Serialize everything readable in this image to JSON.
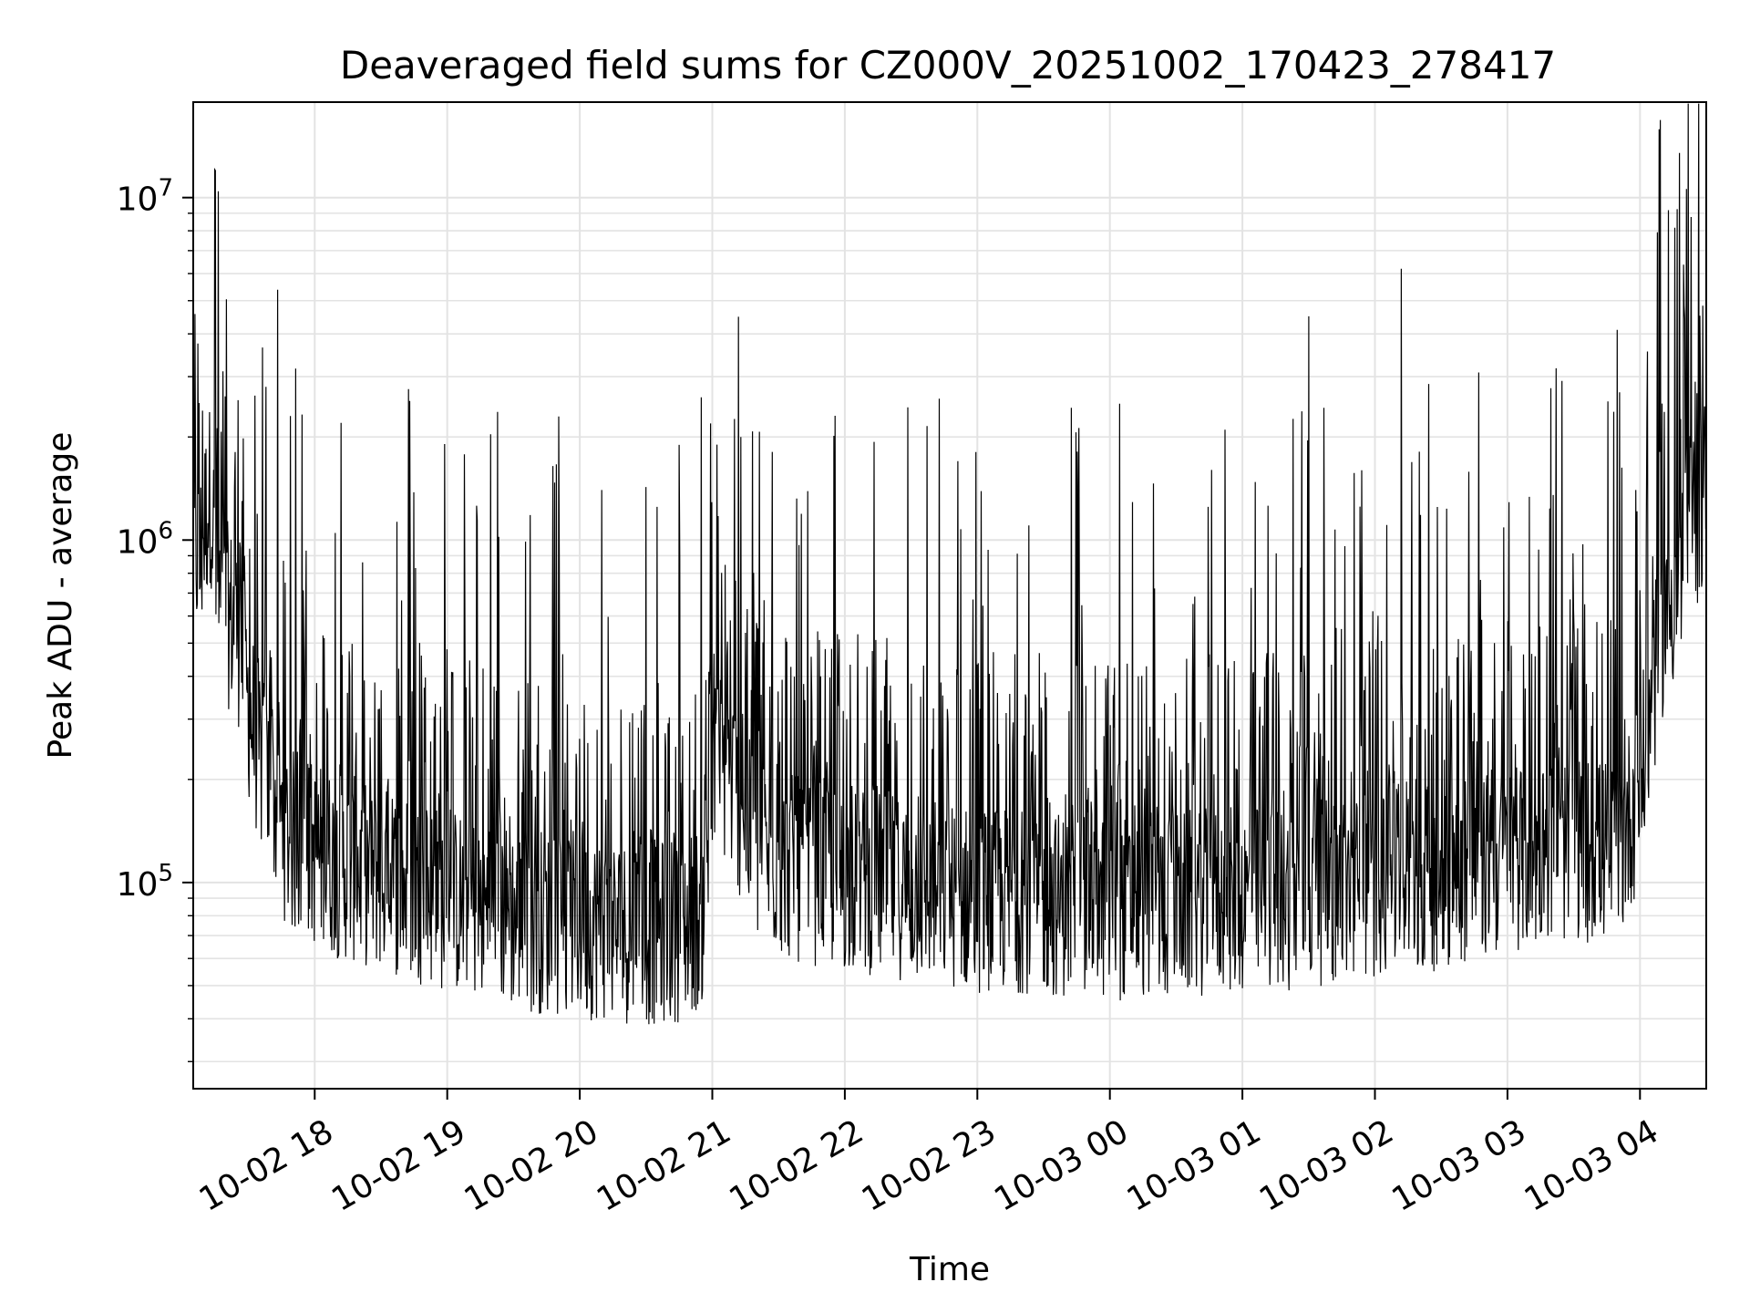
{
  "chart_data": {
    "type": "line",
    "title": "Deaveraged field sums for CZ000V_20251002_170423_278417",
    "xlabel": "Time",
    "ylabel": "Peak ADU - average",
    "yscale": "log",
    "xlim": [
      "2025-10-02T17:05",
      "2025-10-03T04:30"
    ],
    "ylim": [
      25000,
      19000000
    ],
    "grid": true,
    "line_color": "#000000",
    "x_ticks": [
      {
        "value": "2025-10-02T18:00",
        "label": "10-02 18"
      },
      {
        "value": "2025-10-02T19:00",
        "label": "10-02 19"
      },
      {
        "value": "2025-10-02T20:00",
        "label": "10-02 20"
      },
      {
        "value": "2025-10-02T21:00",
        "label": "10-02 21"
      },
      {
        "value": "2025-10-02T22:00",
        "label": "10-02 22"
      },
      {
        "value": "2025-10-02T23:00",
        "label": "10-02 23"
      },
      {
        "value": "2025-10-03T00:00",
        "label": "10-03 00"
      },
      {
        "value": "2025-10-03T01:00",
        "label": "10-03 01"
      },
      {
        "value": "2025-10-03T02:00",
        "label": "10-03 02"
      },
      {
        "value": "2025-10-03T03:00",
        "label": "10-03 03"
      },
      {
        "value": "2025-10-03T04:00",
        "label": "10-03 04"
      }
    ],
    "y_ticks": [
      {
        "value": 100000,
        "base": "10",
        "exp": "5"
      },
      {
        "value": 1000000,
        "base": "10",
        "exp": "6"
      },
      {
        "value": 10000000,
        "base": "10",
        "exp": "7"
      }
    ],
    "series": [
      {
        "x": [
          "2025-10-02T17:05",
          "2025-10-02T17:08",
          "2025-10-02T17:11",
          "2025-10-02T17:13",
          "2025-10-02T17:16",
          "2025-10-02T17:20",
          "2025-10-02T17:25",
          "2025-10-02T17:30",
          "2025-10-02T17:35",
          "2025-10-02T17:40",
          "2025-10-02T17:45",
          "2025-10-02T17:50",
          "2025-10-02T18:00",
          "2025-10-02T18:10",
          "2025-10-02T18:20",
          "2025-10-02T18:30",
          "2025-10-02T18:40",
          "2025-10-02T18:50",
          "2025-10-02T19:00",
          "2025-10-02T19:15",
          "2025-10-02T19:30",
          "2025-10-02T19:45",
          "2025-10-02T20:00",
          "2025-10-02T20:15",
          "2025-10-02T20:30",
          "2025-10-02T20:45",
          "2025-10-02T20:55",
          "2025-10-02T21:02",
          "2025-10-02T21:10",
          "2025-10-02T21:20",
          "2025-10-02T21:40",
          "2025-10-02T22:00",
          "2025-10-02T22:20",
          "2025-10-02T22:40",
          "2025-10-02T23:00",
          "2025-10-02T23:20",
          "2025-10-02T23:40",
          "2025-10-03T00:00",
          "2025-10-03T00:30",
          "2025-10-03T01:00",
          "2025-10-03T01:30",
          "2025-10-03T02:00",
          "2025-10-03T02:30",
          "2025-10-03T03:00",
          "2025-10-03T03:30",
          "2025-10-03T03:50",
          "2025-10-03T04:00",
          "2025-10-03T04:10",
          "2025-10-03T04:20",
          "2025-10-03T04:30"
        ],
        "y": [
          1100000,
          900000,
          1300000,
          1500000,
          700000,
          650000,
          600000,
          350000,
          250000,
          200000,
          160000,
          140000,
          130000,
          120000,
          115000,
          110000,
          105000,
          100000,
          95000,
          90000,
          85000,
          82000,
          80000,
          78000,
          76000,
          78000,
          85000,
          250000,
          200000,
          130000,
          115000,
          110000,
          105000,
          100000,
          95000,
          95000,
          92000,
          90000,
          92000,
          95000,
          98000,
          105000,
          110000,
          125000,
          135000,
          130000,
          200000,
          600000,
          900000,
          1600000
        ],
        "spikes": [
          [
            "2025-10-02T17:15",
            12000000
          ],
          [
            "2025-10-02T17:38",
            2800000
          ],
          [
            "2025-10-02T18:12",
            2200000
          ],
          [
            "2025-10-02T20:10",
            1400000
          ],
          [
            "2025-10-02T20:35",
            1250000
          ],
          [
            "2025-10-02T21:02",
            1900000
          ],
          [
            "2025-10-02T21:13",
            2000000
          ],
          [
            "2025-10-03T00:52",
            2100000
          ],
          [
            "2025-10-03T01:30",
            4500000
          ],
          [
            "2025-10-03T02:12",
            6200000
          ],
          [
            "2025-10-03T03:58",
            1400000
          ],
          [
            "2025-10-03T04:03",
            2300000
          ],
          [
            "2025-10-03T04:18",
            13500000
          ],
          [
            "2025-10-03T04:25",
            2900000
          ]
        ]
      }
    ]
  }
}
